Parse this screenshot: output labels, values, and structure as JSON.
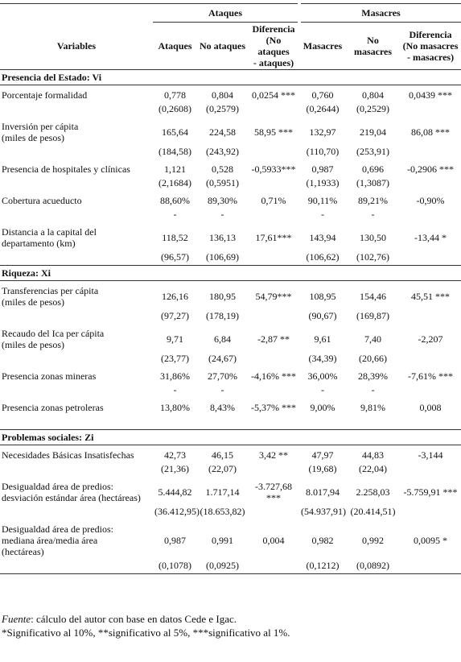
{
  "header": {
    "groups": [
      "Ataques",
      "Masacres"
    ],
    "columns": [
      [
        "Variables"
      ],
      [
        "Ataques"
      ],
      [
        "No ataques"
      ],
      [
        "Diferencia",
        "(No ataques",
        "- ataques)"
      ],
      [
        "Masacres"
      ],
      [
        "No",
        "masacres"
      ],
      [
        "Diferencia",
        "(No masacres",
        "- masacres)"
      ]
    ]
  },
  "sections": [
    {
      "title": "Presencia del Estado: Vi",
      "rows": [
        {
          "label": [
            "Porcentaje formalidad"
          ],
          "values": [
            "0,778",
            "0,804",
            "0,0254 ***",
            "0,760",
            "0,804",
            "0,0439 ***"
          ],
          "sd": [
            "(0,2608)",
            "(0,2579)",
            "(0,2644)",
            "(0,2529)"
          ]
        },
        {
          "label": [
            "Inversión per cápita",
            "(miles de pesos)"
          ],
          "values": [
            "165,64",
            "224,58",
            "58,95 ***",
            "132,97",
            "219,04",
            "86,08 ***"
          ],
          "sd": [
            "(184,58)",
            "(243,92)",
            "(110,70)",
            "(253,91)"
          ]
        },
        {
          "label": [
            "Presencia de hospitales y clínicas"
          ],
          "values": [
            "1,121",
            "0,528",
            "-0,5933***",
            "0,987",
            "0,696",
            "-0,2906 ***"
          ],
          "sd": [
            "(2,1684)",
            "(0,5951)",
            "(1,1933)",
            "(1,3087)"
          ]
        },
        {
          "label": [
            "Cobertura acueducto"
          ],
          "values": [
            "88,60%",
            "89,30%",
            "0,71%",
            "90,11%",
            "89,21%",
            "-0,90%"
          ],
          "sd": [
            "-",
            "-",
            "-",
            "-"
          ]
        },
        {
          "label": [
            "Distancia a la capital del",
            "departamento (km)"
          ],
          "values": [
            "118,52",
            "136,13",
            "17,61***",
            "143,94",
            "130,50",
            "-13,44 *"
          ],
          "sd": [
            "(96,57)",
            "(106,69)",
            "(106,62)",
            "(102,76)"
          ]
        }
      ]
    },
    {
      "title": "Riqueza: Xi",
      "rows": [
        {
          "label": [
            "Transferencias per cápita",
            "(miles de pesos)"
          ],
          "values": [
            "126,16",
            "180,95",
            "54,79***",
            "108,95",
            "154,46",
            "45,51 ***"
          ],
          "sd": [
            "(97,27)",
            "(178,19)",
            "(90,67)",
            "(169,87)"
          ]
        },
        {
          "label": [
            "Recaudo del Ica per cápita",
            "(miles de pesos)"
          ],
          "values": [
            "9,71",
            "6,84",
            "-2,87 **",
            "9,61",
            "7,40",
            "-2,207"
          ],
          "sd": [
            "(23,77)",
            "(24,67)",
            "(34,39)",
            "(20,66)"
          ]
        },
        {
          "label": [
            "Presencia zonas mineras"
          ],
          "values": [
            "31,86%",
            "27,70%",
            "-4,16% ***",
            "36,00%",
            "28,39%",
            "-7,61% ***"
          ],
          "sd": [
            "-",
            "-",
            "-",
            "-"
          ]
        },
        {
          "label": [
            "Presencia zonas petroleras"
          ],
          "values": [
            "13,80%",
            "8,43%",
            "-5,37% ***",
            "9,00%",
            "9,81%",
            "0,008"
          ]
        }
      ]
    },
    {
      "title": "Problemas sociales: Zi",
      "rows": [
        {
          "label": [
            "Necesidades Básicas Insatisfechas"
          ],
          "values": [
            "42,73",
            "46,15",
            "3,42 **",
            "47,97",
            "44,83",
            "-3,144"
          ],
          "sd": [
            "(21,36)",
            "(22,07)",
            "(19,68)",
            "(22,04)"
          ]
        },
        {
          "label": [
            "Desigualdad área de predios:",
            "desviación estándar área (hectáreas)"
          ],
          "values": [
            "5.444,82",
            "1.717,14",
            "-3.727,68 ***",
            "8.017,94",
            "2.258,03",
            "-5.759,91 ***"
          ],
          "sd": [
            "(36.412,95)",
            "(18.653,82)",
            "(54.937,91)",
            "(20.414,51)"
          ]
        },
        {
          "label": [
            "Desigualdad área de predios:",
            "mediana área/media área",
            "(hectáreas)"
          ],
          "values": [
            "0,987",
            "0,991",
            "0,004",
            "0,982",
            "0,992",
            "0,0095 *"
          ],
          "sd": [
            "(0,1078)",
            "(0,0925)",
            "(0,1212)",
            "(0,0892)"
          ]
        }
      ]
    }
  ],
  "footer": {
    "source_label": "Fuente",
    "source_text": ": cálculo del autor con base en datos Cede e Igac.",
    "note": "*Significativo al 10%, **significativo al 5%, ***significativo al 1%."
  }
}
